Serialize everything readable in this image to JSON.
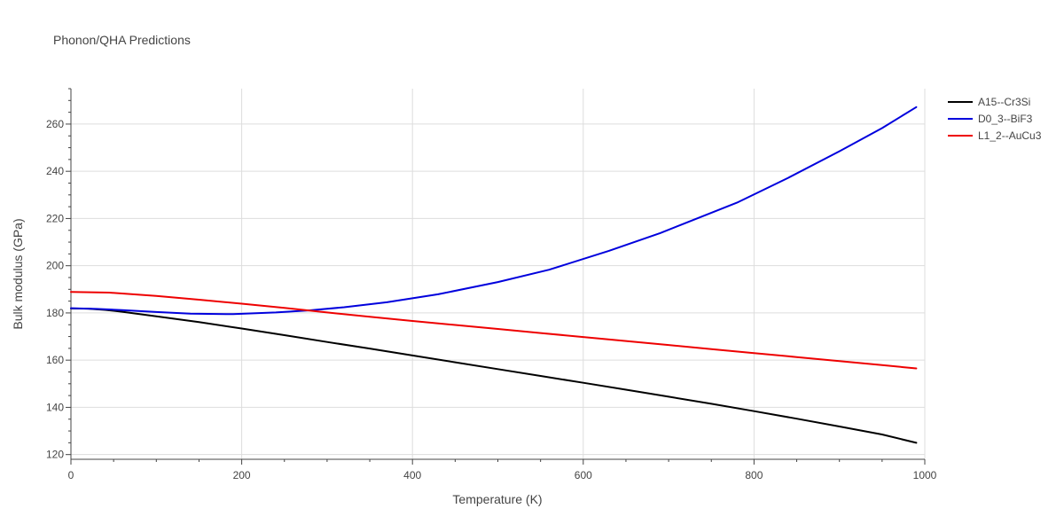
{
  "chart_data": {
    "type": "line",
    "title": "Phonon/QHA Predictions",
    "xlabel": "Temperature (K)",
    "ylabel": "Bulk modulus (GPa)",
    "xlim": [
      0,
      1000
    ],
    "ylim": [
      118,
      275
    ],
    "xticks": [
      0,
      200,
      400,
      600,
      800,
      1000
    ],
    "xtick_labels": [
      "0",
      "200",
      "400",
      "600",
      "800",
      "1000"
    ],
    "yticks": [
      120,
      140,
      160,
      180,
      200,
      220,
      240,
      260
    ],
    "ytick_labels": [
      "120",
      "140",
      "160",
      "180",
      "200",
      "220",
      "240",
      "260"
    ],
    "grid": true,
    "legend": "top-right",
    "series": [
      {
        "name": "A15--Cr3Si",
        "color": "#000000",
        "x": [
          0,
          20,
          40,
          60,
          100,
          150,
          200,
          250,
          300,
          350,
          400,
          450,
          500,
          550,
          600,
          650,
          700,
          750,
          800,
          850,
          900,
          950,
          990
        ],
        "y": [
          181.9,
          181.8,
          181.3,
          180.5,
          178.6,
          176.1,
          173.4,
          170.6,
          167.7,
          164.9,
          162.0,
          159.1,
          156.2,
          153.3,
          150.4,
          147.5,
          144.5,
          141.5,
          138.4,
          135.2,
          131.9,
          128.5,
          125.0
        ]
      },
      {
        "name": "D0_3--BiF3",
        "color": "#0000dd",
        "x": [
          0,
          30,
          60,
          100,
          140,
          190,
          240,
          280,
          320,
          370,
          430,
          500,
          560,
          630,
          690,
          780,
          840,
          900,
          950,
          990
        ],
        "y": [
          182.0,
          181.7,
          181.2,
          180.4,
          179.7,
          179.5,
          180.2,
          181.1,
          182.4,
          184.5,
          187.9,
          193.1,
          198.3,
          206.3,
          213.8,
          226.7,
          237.2,
          248.5,
          258.3,
          267.2
        ]
      },
      {
        "name": "L1_2--AuCu3",
        "color": "#ee0000",
        "x": [
          0,
          45,
          100,
          150,
          200,
          250,
          300,
          350,
          400,
          450,
          500,
          550,
          600,
          650,
          700,
          750,
          800,
          850,
          900,
          950,
          990
        ],
        "y": [
          188.9,
          188.6,
          187.2,
          185.6,
          183.9,
          182.1,
          180.2,
          178.4,
          176.6,
          174.9,
          173.2,
          171.5,
          169.8,
          168.1,
          166.4,
          164.7,
          163.0,
          161.3,
          159.6,
          157.9,
          156.5
        ]
      }
    ]
  }
}
